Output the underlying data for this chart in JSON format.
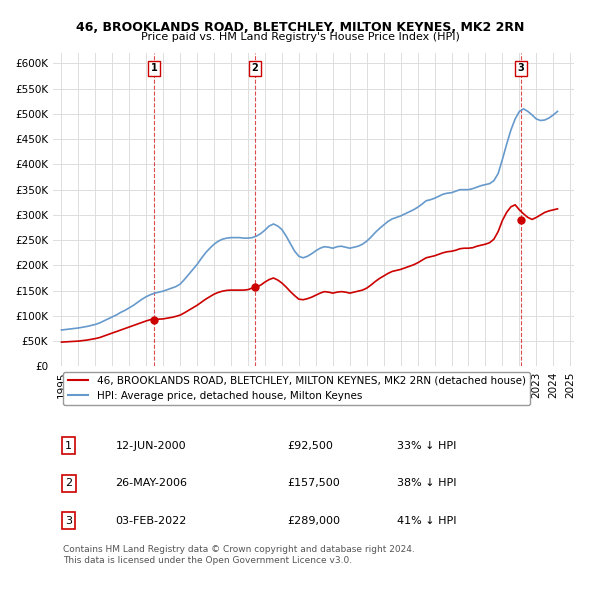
{
  "title1": "46, BROOKLANDS ROAD, BLETCHLEY, MILTON KEYNES, MK2 2RN",
  "title2": "Price paid vs. HM Land Registry's House Price Index (HPI)",
  "ylabel_ticks": [
    "£0",
    "£50K",
    "£100K",
    "£150K",
    "£200K",
    "£250K",
    "£300K",
    "£350K",
    "£400K",
    "£450K",
    "£500K",
    "£550K",
    "£600K"
  ],
  "ytick_values": [
    0,
    50000,
    100000,
    150000,
    200000,
    250000,
    300000,
    350000,
    400000,
    450000,
    500000,
    550000,
    600000
  ],
  "xtick_labels": [
    "1995",
    "1996",
    "1997",
    "1998",
    "1999",
    "2000",
    "2001",
    "2002",
    "2003",
    "2004",
    "2005",
    "2006",
    "2007",
    "2008",
    "2009",
    "2010",
    "2011",
    "2012",
    "2013",
    "2014",
    "2015",
    "2016",
    "2017",
    "2018",
    "2019",
    "2020",
    "2021",
    "2022",
    "2023",
    "2024",
    "2025"
  ],
  "sale_dates": [
    2000.45,
    2006.4,
    2022.09
  ],
  "sale_prices": [
    92500,
    157500,
    289000
  ],
  "sale_labels": [
    "1",
    "2",
    "3"
  ],
  "vline_color": "#cc0000",
  "sale_marker_color": "#cc0000",
  "hpi_line_color": "#6699cc",
  "price_line_color": "#cc0000",
  "legend_entry1": "46, BROOKLANDS ROAD, BLETCHLEY, MILTON KEYNES, MK2 2RN (detached house)",
  "legend_entry2": "HPI: Average price, detached house, Milton Keynes",
  "table_rows": [
    [
      "1",
      "12-JUN-2000",
      "£92,500",
      "33% ↓ HPI"
    ],
    [
      "2",
      "26-MAY-2006",
      "£157,500",
      "38% ↓ HPI"
    ],
    [
      "3",
      "03-FEB-2022",
      "£289,000",
      "41% ↓ HPI"
    ]
  ],
  "footnote": "Contains HM Land Registry data © Crown copyright and database right 2024.\nThis data is licensed under the Open Government Licence v3.0.",
  "bg_color": "#ffffff",
  "grid_color": "#dddddd",
  "hpi_data_x": [
    1995.0,
    1995.25,
    1995.5,
    1995.75,
    1996.0,
    1996.25,
    1996.5,
    1996.75,
    1997.0,
    1997.25,
    1997.5,
    1997.75,
    1998.0,
    1998.25,
    1998.5,
    1998.75,
    1999.0,
    1999.25,
    1999.5,
    1999.75,
    2000.0,
    2000.25,
    2000.5,
    2000.75,
    2001.0,
    2001.25,
    2001.5,
    2001.75,
    2002.0,
    2002.25,
    2002.5,
    2002.75,
    2003.0,
    2003.25,
    2003.5,
    2003.75,
    2004.0,
    2004.25,
    2004.5,
    2004.75,
    2005.0,
    2005.25,
    2005.5,
    2005.75,
    2006.0,
    2006.25,
    2006.5,
    2006.75,
    2007.0,
    2007.25,
    2007.5,
    2007.75,
    2008.0,
    2008.25,
    2008.5,
    2008.75,
    2009.0,
    2009.25,
    2009.5,
    2009.75,
    2010.0,
    2010.25,
    2010.5,
    2010.75,
    2011.0,
    2011.25,
    2011.5,
    2011.75,
    2012.0,
    2012.25,
    2012.5,
    2012.75,
    2013.0,
    2013.25,
    2013.5,
    2013.75,
    2014.0,
    2014.25,
    2014.5,
    2014.75,
    2015.0,
    2015.25,
    2015.5,
    2015.75,
    2016.0,
    2016.25,
    2016.5,
    2016.75,
    2017.0,
    2017.25,
    2017.5,
    2017.75,
    2018.0,
    2018.25,
    2018.5,
    2018.75,
    2019.0,
    2019.25,
    2019.5,
    2019.75,
    2020.0,
    2020.25,
    2020.5,
    2020.75,
    2021.0,
    2021.25,
    2021.5,
    2021.75,
    2022.0,
    2022.25,
    2022.5,
    2022.75,
    2023.0,
    2023.25,
    2023.5,
    2023.75,
    2024.0,
    2024.25
  ],
  "hpi_data_y": [
    72000,
    73000,
    74000,
    75000,
    76000,
    77500,
    79000,
    81000,
    83000,
    86000,
    90000,
    94000,
    98000,
    102000,
    107000,
    111000,
    116000,
    121000,
    127000,
    133000,
    138000,
    142000,
    145000,
    147000,
    149000,
    152000,
    155000,
    158000,
    163000,
    172000,
    182000,
    192000,
    202000,
    214000,
    225000,
    234000,
    242000,
    248000,
    252000,
    254000,
    255000,
    255000,
    255000,
    254000,
    254000,
    255000,
    258000,
    263000,
    270000,
    278000,
    282000,
    278000,
    271000,
    258000,
    243000,
    228000,
    218000,
    215000,
    218000,
    223000,
    229000,
    234000,
    237000,
    236000,
    234000,
    237000,
    238000,
    236000,
    234000,
    236000,
    238000,
    242000,
    248000,
    256000,
    265000,
    273000,
    280000,
    287000,
    292000,
    295000,
    298000,
    302000,
    306000,
    310000,
    315000,
    321000,
    328000,
    330000,
    333000,
    337000,
    341000,
    343000,
    344000,
    347000,
    350000,
    350000,
    350000,
    352000,
    355000,
    358000,
    360000,
    362000,
    368000,
    382000,
    410000,
    440000,
    468000,
    490000,
    505000,
    510000,
    505000,
    498000,
    490000,
    487000,
    488000,
    492000,
    498000,
    505000
  ],
  "price_data_x": [
    1995.0,
    1995.25,
    1995.5,
    1995.75,
    1996.0,
    1996.25,
    1996.5,
    1996.75,
    1997.0,
    1997.25,
    1997.5,
    1997.75,
    1998.0,
    1998.25,
    1998.5,
    1998.75,
    1999.0,
    1999.25,
    1999.5,
    1999.75,
    2000.0,
    2000.25,
    2000.5,
    2000.75,
    2001.0,
    2001.25,
    2001.5,
    2001.75,
    2002.0,
    2002.25,
    2002.5,
    2002.75,
    2003.0,
    2003.25,
    2003.5,
    2003.75,
    2004.0,
    2004.25,
    2004.5,
    2004.75,
    2005.0,
    2005.25,
    2005.5,
    2005.75,
    2006.0,
    2006.25,
    2006.5,
    2006.75,
    2007.0,
    2007.25,
    2007.5,
    2007.75,
    2008.0,
    2008.25,
    2008.5,
    2008.75,
    2009.0,
    2009.25,
    2009.5,
    2009.75,
    2010.0,
    2010.25,
    2010.5,
    2010.75,
    2011.0,
    2011.25,
    2011.5,
    2011.75,
    2012.0,
    2012.25,
    2012.5,
    2012.75,
    2013.0,
    2013.25,
    2013.5,
    2013.75,
    2014.0,
    2014.25,
    2014.5,
    2014.75,
    2015.0,
    2015.25,
    2015.5,
    2015.75,
    2016.0,
    2016.25,
    2016.5,
    2016.75,
    2017.0,
    2017.25,
    2017.5,
    2017.75,
    2018.0,
    2018.25,
    2018.5,
    2018.75,
    2019.0,
    2019.25,
    2019.5,
    2019.75,
    2020.0,
    2020.25,
    2020.5,
    2020.75,
    2021.0,
    2021.25,
    2021.5,
    2021.75,
    2022.0,
    2022.25,
    2022.5,
    2022.75,
    2023.0,
    2023.25,
    2023.5,
    2023.75,
    2024.0,
    2024.25
  ],
  "price_data_y": [
    48000,
    48500,
    49000,
    49500,
    50000,
    51000,
    52000,
    53500,
    55000,
    57000,
    60000,
    63000,
    66000,
    69000,
    72000,
    75000,
    78000,
    81000,
    84000,
    87000,
    90000,
    92500,
    93000,
    93500,
    94000,
    95500,
    97000,
    99000,
    101500,
    106000,
    111000,
    116000,
    121000,
    127000,
    133000,
    138000,
    143000,
    146500,
    149000,
    150500,
    151000,
    151000,
    151000,
    151000,
    152000,
    155000,
    157500,
    161000,
    167000,
    172000,
    175000,
    171000,
    165000,
    157000,
    148000,
    140000,
    133000,
    132000,
    134000,
    137000,
    141000,
    145000,
    148000,
    147000,
    145000,
    147000,
    148000,
    147000,
    145000,
    147000,
    149000,
    151000,
    155000,
    161000,
    168000,
    174000,
    179000,
    184000,
    188000,
    190000,
    192000,
    195000,
    198000,
    201000,
    205000,
    210000,
    215000,
    217000,
    219000,
    222000,
    225000,
    227000,
    228000,
    230000,
    233000,
    234000,
    234000,
    235000,
    238000,
    240000,
    242000,
    245000,
    252000,
    267000,
    289000,
    305000,
    316000,
    320000,
    310000,
    302000,
    295000,
    291000,
    295000,
    300000,
    305000,
    308000,
    310000,
    312000
  ]
}
